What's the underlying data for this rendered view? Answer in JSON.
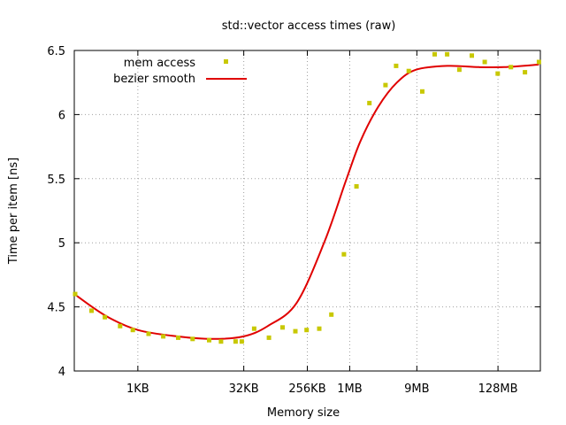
{
  "chart_data": {
    "type": "scatter",
    "title": "std::vector access times (raw)",
    "xlabel": "Memory size",
    "ylabel": "Time per item [ns]",
    "x_scale": "log2",
    "x_unit": "KB",
    "xlim": [
      0.125,
      524288
    ],
    "ylim": [
      4,
      6.5
    ],
    "grid": true,
    "legend_position": "top-left",
    "x_ticks": [
      {
        "value": 1,
        "label": "1KB"
      },
      {
        "value": 32,
        "label": "32KB"
      },
      {
        "value": 256,
        "label": "256KB"
      },
      {
        "value": 1024,
        "label": "1MB"
      },
      {
        "value": 9216,
        "label": "9MB"
      },
      {
        "value": 131072,
        "label": "128MB"
      }
    ],
    "y_ticks": [
      {
        "value": 4,
        "label": "4"
      },
      {
        "value": 4.5,
        "label": "4.5"
      },
      {
        "value": 5,
        "label": "5"
      },
      {
        "value": 5.5,
        "label": "5.5"
      },
      {
        "value": 6,
        "label": "6"
      },
      {
        "value": 6.5,
        "label": "6.5"
      }
    ],
    "series": [
      {
        "name": "mem access",
        "style": "points",
        "color": "#c8c800",
        "x": [
          0.125,
          0.22,
          0.34,
          0.56,
          0.85,
          1.42,
          2.3,
          3.75,
          6.0,
          10.3,
          15.2,
          24.5,
          30,
          45,
          73,
          114,
          173,
          250,
          378,
          562,
          848,
          1280,
          1950,
          3300,
          4680,
          7070,
          11000,
          16500,
          24800,
          37000,
          55700,
          85000,
          130000,
          200000,
          317000,
          500000
        ],
        "y": [
          4.6,
          4.47,
          4.42,
          4.35,
          4.32,
          4.29,
          4.27,
          4.26,
          4.25,
          4.24,
          4.23,
          4.23,
          4.23,
          4.33,
          4.26,
          4.34,
          4.31,
          4.32,
          4.33,
          4.44,
          4.91,
          5.44,
          6.09,
          6.23,
          6.38,
          6.34,
          6.18,
          6.47,
          6.47,
          6.35,
          6.46,
          6.41,
          6.32,
          6.37,
          6.33,
          6.41
        ]
      },
      {
        "name": "bezier smooth",
        "style": "line",
        "color": "#e00000",
        "x": [
          0.125,
          0.35,
          1,
          3.6,
          12,
          32,
          70,
          180,
          450,
          900,
          1450,
          2600,
          4800,
          9000,
          25000,
          70000,
          160000,
          500000
        ],
        "y": [
          4.6,
          4.43,
          4.32,
          4.27,
          4.25,
          4.27,
          4.35,
          4.53,
          5.01,
          5.48,
          5.79,
          6.06,
          6.25,
          6.35,
          6.38,
          6.37,
          6.37,
          6.39
        ]
      }
    ]
  }
}
